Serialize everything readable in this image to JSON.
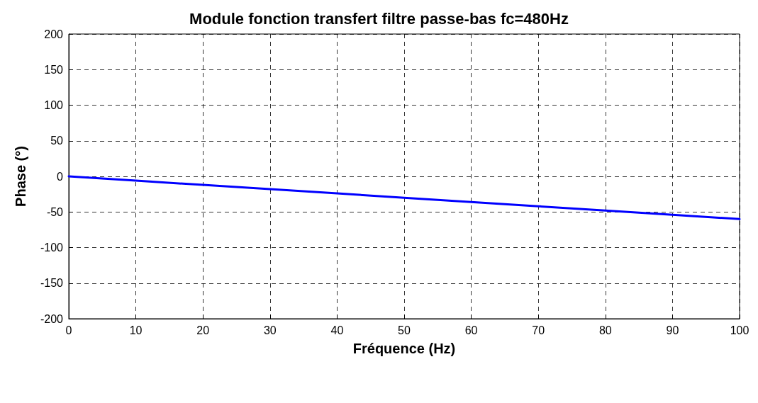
{
  "chart_data": {
    "type": "line",
    "title": "Module fonction transfert filtre passe-bas fc=480Hz",
    "xlabel": "Fréquence (Hz)",
    "ylabel": "Phase (°)",
    "x": [
      0,
      10,
      20,
      30,
      40,
      50,
      60,
      70,
      80,
      90,
      100
    ],
    "series": [
      {
        "color": "#0000ff",
        "values": [
          0,
          -6,
          -12,
          -18,
          -24,
          -30,
          -36,
          -42,
          -48,
          -54,
          -60
        ]
      }
    ],
    "xlim": [
      0,
      100
    ],
    "xticks": [
      0,
      10,
      20,
      30,
      40,
      50,
      60,
      70,
      80,
      90,
      100
    ],
    "ylim": [
      -200,
      200
    ],
    "yticks": [
      -200,
      -150,
      -100,
      -50,
      0,
      50,
      100,
      150,
      200
    ],
    "grid": true,
    "marker": "none",
    "line_style": "solid"
  }
}
